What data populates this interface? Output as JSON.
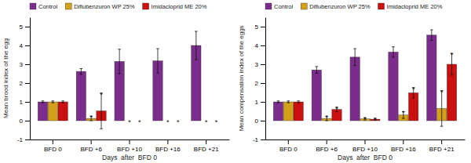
{
  "chart_data": [
    {
      "type": "bar",
      "xlabel": "Days  after  BFD 0",
      "ylabel": "Mean brood index of the egg",
      "categories": [
        "BFD 0",
        "BFD +6",
        "BFD +10",
        "BFD +16",
        "BFD +21"
      ],
      "series": [
        {
          "name": "Control",
          "color": "#7B2D8B",
          "values": [
            1.0,
            2.62,
            3.15,
            3.18,
            4.0
          ],
          "errors": [
            0.05,
            0.15,
            0.65,
            0.65,
            0.75
          ],
          "annotations": [
            null,
            null,
            null,
            null,
            null
          ]
        },
        {
          "name": "Diflubenzuron WP 25%",
          "color": "#D4A017",
          "values": [
            1.0,
            0.12,
            0.0,
            0.0,
            0.0
          ],
          "errors": [
            0.05,
            0.12,
            0.0,
            0.0,
            0.0
          ],
          "annotations": [
            null,
            "*",
            "*",
            "*",
            "*"
          ]
        },
        {
          "name": "Imidacloprid ME 20%",
          "color": "#CC1010",
          "values": [
            1.0,
            0.52,
            0.0,
            0.0,
            0.0
          ],
          "errors": [
            0.05,
            0.95,
            0.0,
            0.0,
            0.0
          ],
          "annotations": [
            null,
            "*",
            "*",
            "*",
            "*"
          ]
        }
      ],
      "ylim": [
        -1,
        5.5
      ],
      "yticks": [
        -1,
        0,
        1,
        2,
        3,
        4,
        5
      ],
      "legend": "top-left"
    },
    {
      "type": "bar",
      "xlabel": "Days  after  BFD 0",
      "ylabel": "Mean compensation index of the eggs",
      "categories": [
        "BFD 0",
        "BFD +6",
        "BFD +10",
        "BFD +16",
        "BFD +21"
      ],
      "series": [
        {
          "name": "Control",
          "color": "#7B2D8B",
          "values": [
            1.0,
            2.7,
            3.38,
            3.65,
            4.55
          ],
          "errors": [
            0.05,
            0.18,
            0.45,
            0.28,
            0.28
          ],
          "annotations": [
            null,
            null,
            null,
            null,
            null
          ]
        },
        {
          "name": "Diflubenzuron WP 25%",
          "color": "#D4A017",
          "values": [
            1.0,
            0.12,
            0.1,
            0.3,
            0.65
          ],
          "errors": [
            0.05,
            0.12,
            0.06,
            0.18,
            0.95
          ],
          "annotations": [
            null,
            "*",
            "*",
            "*",
            "*"
          ]
        },
        {
          "name": "Imidacloprid ME 20%",
          "color": "#CC1010",
          "values": [
            1.0,
            0.6,
            0.08,
            1.48,
            3.0
          ],
          "errors": [
            0.05,
            0.12,
            0.05,
            0.28,
            0.58
          ],
          "annotations": [
            null,
            "*",
            "*",
            "*",
            "*"
          ]
        }
      ],
      "ylim": [
        -1,
        5.5
      ],
      "yticks": [
        -1,
        0,
        1,
        2,
        3,
        4,
        5
      ],
      "legend": "top-left"
    }
  ]
}
